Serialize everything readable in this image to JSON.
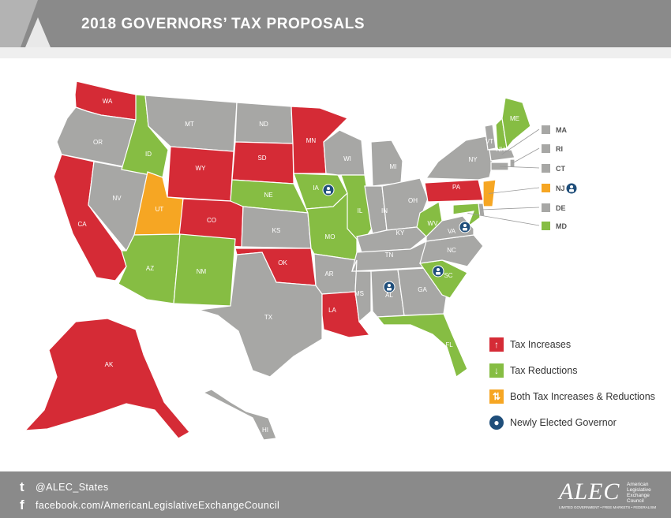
{
  "header": {
    "title": "2018 GOVERNORS’ TAX PROPOSALS"
  },
  "colors": {
    "increase": "#d52b36",
    "reduction": "#86bd43",
    "both": "#f6a623",
    "none": "#a7a7a5",
    "governor": "#1f4e7a",
    "header": "#8a8a8a"
  },
  "states": [
    {
      "abbr": "WA",
      "category": "increase"
    },
    {
      "abbr": "OR",
      "category": "none"
    },
    {
      "abbr": "CA",
      "category": "increase"
    },
    {
      "abbr": "NV",
      "category": "none"
    },
    {
      "abbr": "ID",
      "category": "reduction"
    },
    {
      "abbr": "MT",
      "category": "none"
    },
    {
      "abbr": "WY",
      "category": "increase"
    },
    {
      "abbr": "UT",
      "category": "both"
    },
    {
      "abbr": "CO",
      "category": "increase"
    },
    {
      "abbr": "AZ",
      "category": "reduction"
    },
    {
      "abbr": "NM",
      "category": "reduction"
    },
    {
      "abbr": "ND",
      "category": "none"
    },
    {
      "abbr": "SD",
      "category": "increase"
    },
    {
      "abbr": "NE",
      "category": "reduction"
    },
    {
      "abbr": "KS",
      "category": "none"
    },
    {
      "abbr": "OK",
      "category": "increase"
    },
    {
      "abbr": "TX",
      "category": "none"
    },
    {
      "abbr": "MN",
      "category": "increase"
    },
    {
      "abbr": "IA",
      "category": "reduction",
      "new_governor": true
    },
    {
      "abbr": "MO",
      "category": "reduction"
    },
    {
      "abbr": "AR",
      "category": "none"
    },
    {
      "abbr": "LA",
      "category": "increase"
    },
    {
      "abbr": "WI",
      "category": "none"
    },
    {
      "abbr": "IL",
      "category": "reduction"
    },
    {
      "abbr": "MI",
      "category": "none"
    },
    {
      "abbr": "IN",
      "category": "none"
    },
    {
      "abbr": "OH",
      "category": "none"
    },
    {
      "abbr": "KY",
      "category": "none"
    },
    {
      "abbr": "TN",
      "category": "none"
    },
    {
      "abbr": "MS",
      "category": "none"
    },
    {
      "abbr": "AL",
      "category": "none",
      "new_governor": true
    },
    {
      "abbr": "GA",
      "category": "none"
    },
    {
      "abbr": "FL",
      "category": "reduction"
    },
    {
      "abbr": "SC",
      "category": "reduction",
      "new_governor": true
    },
    {
      "abbr": "NC",
      "category": "none"
    },
    {
      "abbr": "VA",
      "category": "none",
      "new_governor": true
    },
    {
      "abbr": "WV",
      "category": "reduction"
    },
    {
      "abbr": "PA",
      "category": "increase"
    },
    {
      "abbr": "NY",
      "category": "none"
    },
    {
      "abbr": "VT",
      "category": "none"
    },
    {
      "abbr": "NH",
      "category": "reduction"
    },
    {
      "abbr": "ME",
      "category": "reduction"
    },
    {
      "abbr": "MA",
      "category": "none"
    },
    {
      "abbr": "RI",
      "category": "none"
    },
    {
      "abbr": "CT",
      "category": "none"
    },
    {
      "abbr": "NJ",
      "category": "both",
      "new_governor": true
    },
    {
      "abbr": "DE",
      "category": "none"
    },
    {
      "abbr": "MD",
      "category": "reduction"
    },
    {
      "abbr": "AK",
      "category": "increase"
    },
    {
      "abbr": "HI",
      "category": "none"
    }
  ],
  "legend": [
    {
      "label": "Tax Increases",
      "icon": "arrow-up-icon",
      "color": "#d52b36",
      "glyph": "↑"
    },
    {
      "label": "Tax Reductions",
      "icon": "arrow-down-icon",
      "color": "#86bd43",
      "glyph": "↓"
    },
    {
      "label": "Both Tax Increases & Reductions",
      "icon": "up-down-arrows-icon",
      "color": "#f6a623",
      "glyph": "⇅"
    },
    {
      "label": "Newly Elected Governor",
      "icon": "person-circle-icon",
      "color": "#1f4e7a",
      "glyph": "●"
    }
  ],
  "footer": {
    "twitter_icon": "twitter-icon",
    "twitter": "@ALEC_States",
    "facebook_icon": "facebook-icon",
    "facebook": "facebook.com/AmericanLegislativeExchangeCouncil",
    "logo": "ALEC",
    "logo_side": "American Legislative Exchange Council",
    "logo_tagline": "LIMITED GOVERNMENT • FREE MARKETS • FEDERALISM"
  }
}
